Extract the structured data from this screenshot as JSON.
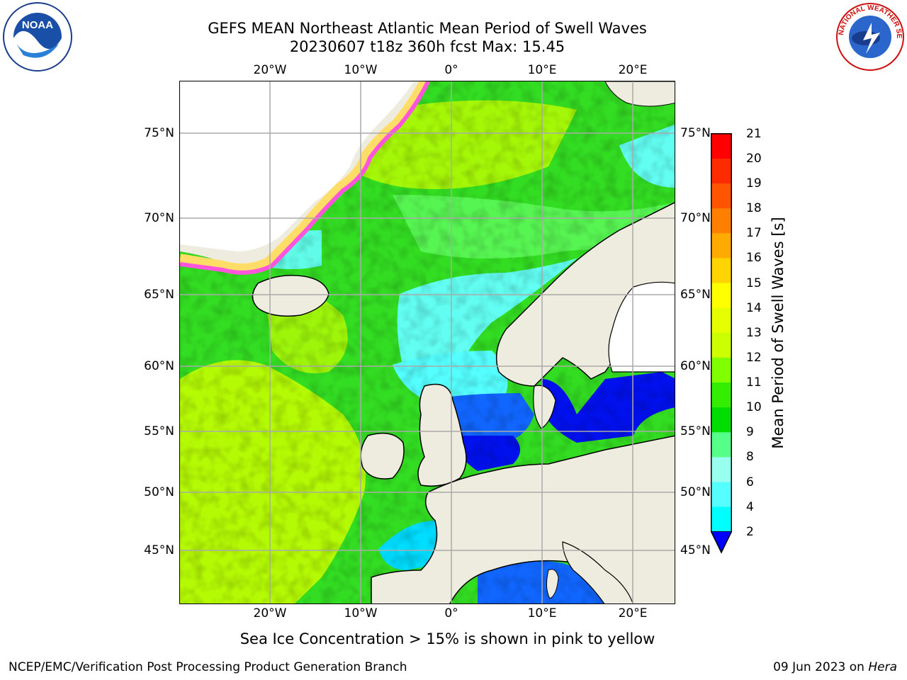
{
  "title_line1": "GEFS MEAN Northeast Atlantic Mean Period of Swell Waves",
  "title_line2": "20230607 t18z 360h fcst   Max: 15.45",
  "longitude_ticks": [
    "20°W",
    "10°W",
    "0°",
    "10°E",
    "20°E"
  ],
  "latitude_ticks": [
    "75°N",
    "70°N",
    "65°N",
    "60°N",
    "55°N",
    "50°N",
    "45°N"
  ],
  "colorbar": {
    "title": "Mean Period of Swell Waves [s]",
    "labels": [
      "21",
      "20",
      "19",
      "18",
      "17",
      "16",
      "15",
      "14",
      "13",
      "12",
      "11",
      "10",
      "9",
      "8",
      "6",
      "4",
      "2"
    ],
    "colors": [
      "#ff0000",
      "#ff2b00",
      "#ff5500",
      "#ff7f00",
      "#ffaa00",
      "#ffd400",
      "#ffff00",
      "#e6ff00",
      "#ccff00",
      "#7fff00",
      "#33ee00",
      "#00dd00",
      "#55ff88",
      "#99ffee",
      "#55ffff",
      "#00ffff",
      "#0088ff",
      "#0000ff"
    ]
  },
  "caption": "Sea Ice Concentration > 15% is shown in pink to yellow",
  "credit_left": "NCEP/EMC/Verification Post Processing Product Generation Branch",
  "credit_right_date": "09 Jun 2023 on ",
  "credit_right_machine": "Hera",
  "noaa_logo_text": "NOAA",
  "nws_logo_text": "NATIONAL WEATHER SERVICE",
  "map_colors": {
    "land": "#eeecde",
    "ocean_green": "#33dd22",
    "ocean_yellow_green": "#ccff00",
    "ocean_light_green": "#66ff66",
    "ocean_cyan": "#66ffff",
    "ocean_blue": "#1166ff",
    "ocean_deep_blue": "#0011ee",
    "ice_pink": "#ff55dd",
    "ice_yellow": "#ffdd66",
    "grid": "#aaaaaa"
  }
}
